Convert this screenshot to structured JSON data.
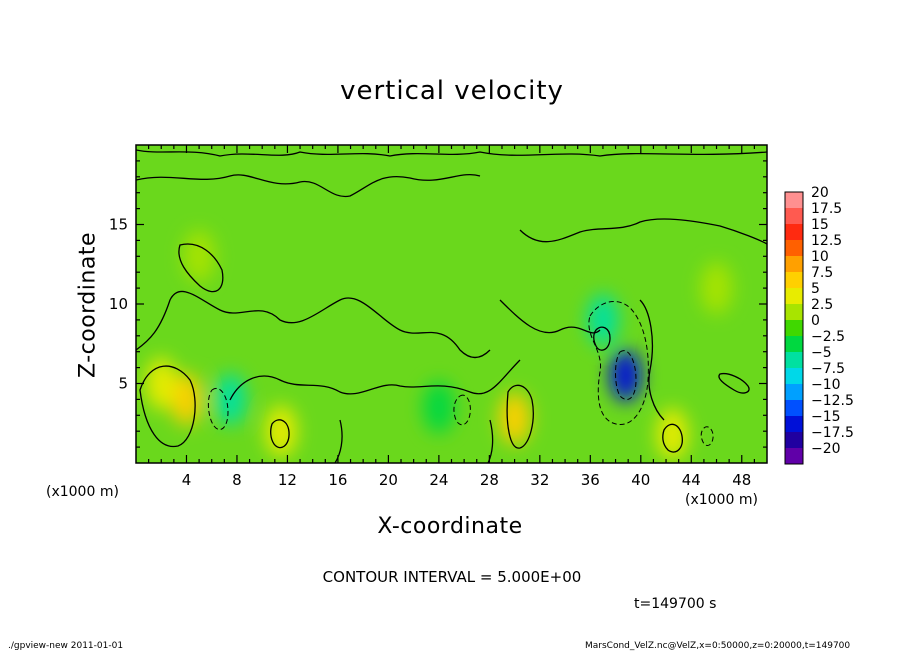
{
  "chart_data": {
    "type": "heatmap",
    "title": "vertical velocity",
    "xlabel": "X-coordinate",
    "ylabel": "Z-coordinate",
    "x_unit_label": "(x1000 m)",
    "x_ticks": [
      4,
      8,
      12,
      16,
      20,
      24,
      28,
      32,
      36,
      40,
      44,
      48
    ],
    "y_ticks": [
      5,
      10,
      15
    ],
    "xlim": [
      0,
      50
    ],
    "ylim": [
      0,
      20
    ],
    "colorbar": {
      "labels": [
        "20",
        "17.5",
        "15",
        "12.5",
        "10",
        "7.5",
        "5",
        "2.5",
        "0",
        "−2.5",
        "−5",
        "−7.5",
        "−10",
        "−12.5",
        "−15",
        "−17.5",
        "−20"
      ],
      "colors": [
        "#ff9090",
        "#ff5a50",
        "#ff2a10",
        "#ff6000",
        "#ffa000",
        "#ffd000",
        "#e8ec00",
        "#a8e400",
        "#40d800",
        "#00d840",
        "#00e0a0",
        "#00d8e8",
        "#00a0ff",
        "#0050ff",
        "#0010d8",
        "#2000a0",
        "#6000a8"
      ]
    },
    "contour_interval": "CONTOUR INTERVAL = 5.000E+00",
    "features": [
      {
        "x": 4,
        "z": 4,
        "level": 7.5
      },
      {
        "x": 2,
        "z": 5,
        "level": 5
      },
      {
        "x": 11.5,
        "z": 2,
        "level": 5
      },
      {
        "x": 30,
        "z": 2.8,
        "level": 7.5
      },
      {
        "x": 37,
        "z": 9,
        "level": -5
      },
      {
        "x": 38.8,
        "z": 5.5,
        "level": -15
      },
      {
        "x": 7.5,
        "z": 4,
        "level": -5
      },
      {
        "x": 24,
        "z": 3.5,
        "level": -2.5
      },
      {
        "x": 42.5,
        "z": 1.8,
        "level": 5
      },
      {
        "x": 46,
        "z": 11,
        "level": 2.5
      },
      {
        "x": 5,
        "z": 13,
        "level": 2.5
      }
    ]
  },
  "texts": {
    "x_unit_left": "(x1000 m)",
    "x_unit_right": "(x1000 m)",
    "timestamp": "t=149700 s",
    "footer_left": "./gpview-new   2011-01-01",
    "footer_right": "MarsCond_VelZ.nc@VelZ,x=0:50000,z=0:20000,t=149700"
  }
}
